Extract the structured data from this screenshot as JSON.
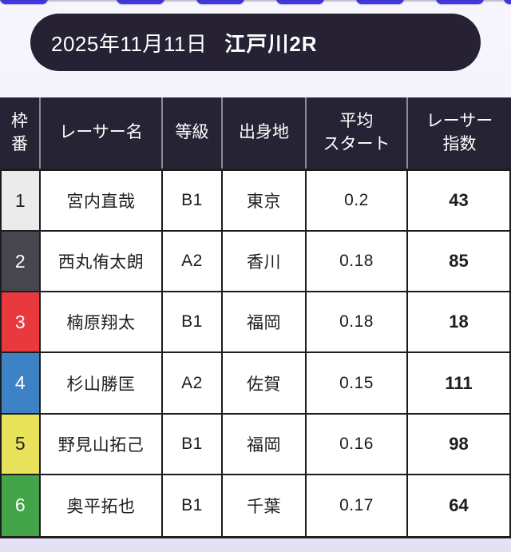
{
  "colors": {
    "top_icon": "#3d35f1",
    "header_bar_bg": "#262233",
    "table_header_bg": "#262334",
    "table_border": "#1d1d20"
  },
  "header": {
    "date": "2025年11月11日",
    "race": "江戸川2R"
  },
  "table": {
    "columns": [
      "枠\n番",
      "レーサー名",
      "等級",
      "出身地",
      "平均\nスタート",
      "レーサー\n指数"
    ],
    "rows": [
      {
        "waku": "1",
        "name": "宮内直哉",
        "grade": "B1",
        "origin": "東京",
        "avg_start": "0.2",
        "index": "43",
        "waku_bg": "#ebebeb",
        "waku_fg": "#222222"
      },
      {
        "waku": "2",
        "name": "西丸侑太朗",
        "grade": "A2",
        "origin": "香川",
        "avg_start": "0.18",
        "index": "85",
        "waku_bg": "#47454d",
        "waku_fg": "#ffffff"
      },
      {
        "waku": "3",
        "name": "楠原翔太",
        "grade": "B1",
        "origin": "福岡",
        "avg_start": "0.18",
        "index": "18",
        "waku_bg": "#e8393e",
        "waku_fg": "#ffffff"
      },
      {
        "waku": "4",
        "name": "杉山勝匡",
        "grade": "A2",
        "origin": "佐賀",
        "avg_start": "0.15",
        "index": "111",
        "waku_bg": "#3d82c4",
        "waku_fg": "#ffffff"
      },
      {
        "waku": "5",
        "name": "野見山拓己",
        "grade": "B1",
        "origin": "福岡",
        "avg_start": "0.16",
        "index": "98",
        "waku_bg": "#e9e35c",
        "waku_fg": "#222222"
      },
      {
        "waku": "6",
        "name": "奥平拓也",
        "grade": "B1",
        "origin": "千葉",
        "avg_start": "0.17",
        "index": "64",
        "waku_bg": "#43a449",
        "waku_fg": "#ffffff"
      }
    ]
  }
}
